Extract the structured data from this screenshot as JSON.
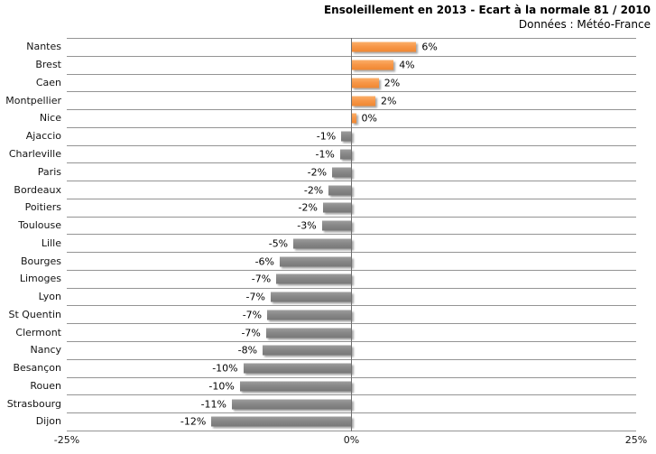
{
  "header": {
    "title": "Ensoleillement en 2013 - Ecart à la normale 81 / 2010",
    "subtitle": "Données : Météo-France"
  },
  "chart_data": {
    "type": "bar",
    "orientation": "horizontal",
    "title": "Ensoleillement en 2013 - Ecart à la normale 81 / 2010",
    "subtitle": "Données : Météo-France",
    "categories": [
      "Nantes",
      "Brest",
      "Caen",
      "Montpellier",
      "Nice",
      "Ajaccio",
      "Charleville",
      "Paris",
      "Bordeaux",
      "Poitiers",
      "Toulouse",
      "Lille",
      "Bourges",
      "Limoges",
      "Lyon",
      "St Quentin",
      "Clermont",
      "Nancy",
      "Besançon",
      "Rouen",
      "Strasbourg",
      "Dijon"
    ],
    "values": [
      6,
      4,
      2,
      2,
      0,
      -1,
      -1,
      -2,
      -2,
      -2,
      -3,
      -5,
      -6,
      -7,
      -7,
      -7,
      -7,
      -8,
      -10,
      -10,
      -11,
      -12
    ],
    "data_labels": [
      "6%",
      "4%",
      "2%",
      "2%",
      "0%",
      "-1%",
      "-1%",
      "-2%",
      "-2%",
      "-2%",
      "-3%",
      "-5%",
      "-6%",
      "-7%",
      "-7%",
      "-7%",
      "-7%",
      "-8%",
      "-10%",
      "-10%",
      "-11%",
      "-12%"
    ],
    "bar_lengths_precise": [
      5.7,
      3.7,
      2.4,
      2.1,
      0.4,
      -0.9,
      -1.0,
      -1.7,
      -2.0,
      -2.5,
      -2.6,
      -5.1,
      -6.3,
      -6.6,
      -7.1,
      -7.4,
      -7.5,
      -7.8,
      -9.5,
      -9.8,
      -10.5,
      -12.3
    ],
    "xlim": [
      -25,
      25
    ],
    "x_ticks": [
      "-25%",
      "0%",
      "25%"
    ],
    "x_tick_positions": [
      0,
      0.5,
      1
    ],
    "grid": "horizontal category separator lines, vertical zero axis",
    "legend": "none",
    "colors": {
      "positive_bar": "#F79646",
      "negative_bar": "#878787",
      "gridline": "#949494",
      "zero_axis": "#6E6E6E",
      "text": "#000000",
      "background": "#FFFFFF"
    }
  }
}
